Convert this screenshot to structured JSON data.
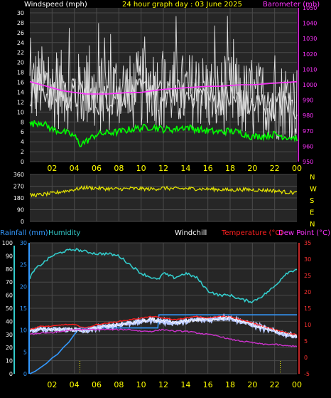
{
  "colors": {
    "background": "#000000",
    "plot_bg": "#262626",
    "grid": "#4a4a4a",
    "axis_text": "#ffffff",
    "hour_text": "#ffff00",
    "header_title": "#ffff00",
    "pressure": "#ff33ff",
    "wind": "#ffffff",
    "gust_band": "#bdbdbd",
    "windchill_band": "#ffff66",
    "direction": "#e6e600",
    "green_series": "#00ff00",
    "rain": "#3399ff",
    "humidity": "#33cccc",
    "temperature": "#ff2020",
    "dewpoint": "#cc33cc",
    "windchill": "#ffffff",
    "temp_axis": "#ff3333",
    "rain_axis": "#3399ff",
    "hum_axis": "#33cccc"
  },
  "header": {
    "windspeed_label": "Windspeed (mph)",
    "title": "24 hour graph day : 03 June 2025",
    "barometer_label": "Barometer (mb)"
  },
  "lower_header": {
    "rainfall_label": "Rainfall (mm)",
    "humidity_label": "Humidity",
    "windchill_label": "Windchill",
    "temperature_label": "Temperature (°C)",
    "dewpoint_label": "Dew Point (°C)"
  },
  "hour_labels": [
    "02",
    "04",
    "06",
    "08",
    "10",
    "12",
    "14",
    "16",
    "18",
    "20",
    "22",
    "00"
  ],
  "direction_labels": [
    "N",
    "W",
    "S",
    "E",
    "N"
  ],
  "chart_data": [
    {
      "type": "line",
      "panel": "wind_pressure",
      "x_unit": "hour",
      "xlim": [
        0,
        24
      ],
      "y_left": {
        "ticks": [
          0,
          2,
          4,
          6,
          8,
          10,
          12,
          14,
          16,
          18,
          20,
          22,
          24,
          26,
          28,
          30
        ],
        "ylim": [
          0,
          31
        ]
      },
      "y_right": {
        "ticks": [
          950,
          960,
          970,
          980,
          990,
          1000,
          1010,
          1020,
          1030,
          1040,
          1050
        ],
        "ylim": [
          950,
          1050
        ]
      },
      "grid": true,
      "series": [
        {
          "role": "pressure",
          "axis": "right",
          "x": [
            0,
            1,
            2,
            3,
            4,
            5,
            6,
            7,
            8,
            9,
            10,
            11,
            12,
            13,
            14,
            15,
            16,
            17,
            18,
            19,
            20,
            21,
            22,
            23,
            24
          ],
          "y": [
            1002,
            1000,
            998,
            996,
            995,
            994,
            994,
            994,
            994.5,
            995,
            995,
            996,
            997,
            997.5,
            998,
            998.5,
            999,
            999,
            999.5,
            1000,
            1000,
            1000.5,
            1001,
            1001.5,
            1002
          ]
        },
        {
          "role": "wind_avg",
          "axis": "left",
          "x": [
            0,
            1,
            2,
            3,
            4,
            5,
            6,
            7,
            8,
            9,
            10,
            11,
            12,
            13,
            14,
            15,
            16,
            17,
            18,
            19,
            20,
            21,
            22,
            23,
            24
          ],
          "y": [
            14,
            15,
            13,
            14,
            13,
            14,
            12,
            13,
            14,
            13,
            14,
            15,
            13,
            14,
            13,
            14,
            13,
            12,
            13,
            12,
            11,
            12,
            11,
            12,
            11
          ]
        },
        {
          "role": "green_series",
          "axis": "left",
          "x": [
            0,
            1,
            2,
            3,
            4,
            4.5,
            5,
            6,
            7,
            8,
            9,
            10,
            11,
            12,
            13,
            14,
            15,
            16,
            17,
            18,
            19,
            20,
            21,
            22,
            23,
            24
          ],
          "y": [
            7.5,
            8,
            6.5,
            6,
            5.2,
            3.5,
            4,
            5.5,
            5.8,
            6,
            6.5,
            6.8,
            7,
            6.5,
            6.5,
            7,
            6.5,
            6.2,
            6,
            6.2,
            5.8,
            5,
            5.2,
            5.5,
            5,
            4.8
          ]
        }
      ]
    },
    {
      "type": "line",
      "panel": "wind_direction",
      "x_unit": "hour",
      "xlim": [
        0,
        24
      ],
      "ylim": [
        0,
        360
      ],
      "y_ticks": [
        0,
        90,
        180,
        270,
        360
      ],
      "grid": true,
      "series": [
        {
          "role": "direction",
          "x": [
            0,
            1,
            2,
            3,
            4,
            5,
            6,
            7,
            8,
            9,
            10,
            11,
            12,
            13,
            14,
            15,
            16,
            17,
            18,
            19,
            20,
            21,
            22,
            23,
            24
          ],
          "y": [
            200,
            205,
            215,
            230,
            245,
            260,
            255,
            250,
            248,
            252,
            250,
            248,
            255,
            250,
            252,
            250,
            248,
            245,
            240,
            245,
            242,
            240,
            235,
            225,
            220
          ]
        }
      ]
    },
    {
      "type": "line",
      "panel": "temp_humidity_rain",
      "x_unit": "hour",
      "xlim": [
        0,
        24
      ],
      "y_rain": {
        "ticks": [
          0,
          10,
          20,
          30,
          40,
          50,
          60,
          70,
          80,
          90,
          100
        ],
        "ylim": [
          0,
          100
        ]
      },
      "y_humidity": {
        "ticks": [
          0,
          5,
          10,
          15,
          20,
          25,
          30
        ],
        "ylim": [
          0,
          30
        ]
      },
      "y_temp": {
        "ticks": [
          -5,
          0,
          5,
          10,
          15,
          20,
          25,
          30,
          35
        ],
        "ylim": [
          -5,
          35
        ]
      },
      "grid": true,
      "series": [
        {
          "role": "humidity",
          "axis": "humidity",
          "x": [
            0,
            0.5,
            1,
            2,
            3,
            4,
            5,
            6,
            7,
            8,
            9,
            10,
            11,
            11.5,
            12,
            13,
            14,
            15,
            16,
            17,
            18,
            19,
            20,
            21,
            22,
            23,
            24
          ],
          "y": [
            22,
            24,
            25,
            27,
            28,
            28.5,
            28,
            27.5,
            27.5,
            27,
            25,
            23,
            22,
            21.5,
            23,
            22,
            23,
            22,
            19,
            18,
            18,
            17,
            16.5,
            18,
            20,
            23,
            24
          ]
        },
        {
          "role": "rain_cumulative",
          "axis": "rain",
          "x": [
            0,
            0.5,
            1,
            1.5,
            2,
            2.5,
            3,
            3.5,
            4,
            4.5,
            5,
            11.5,
            11.6,
            12,
            14,
            16,
            18,
            20,
            22,
            24
          ],
          "y": [
            0,
            2,
            5,
            8,
            12,
            15,
            20,
            24,
            30,
            35,
            35,
            35,
            45,
            45,
            45,
            45,
            45,
            45,
            45,
            45
          ]
        },
        {
          "role": "temperature",
          "axis": "temp",
          "x": [
            0,
            1,
            2,
            3,
            4,
            5,
            6,
            7,
            8,
            9,
            10,
            11,
            12,
            13,
            14,
            15,
            16,
            17,
            18,
            19,
            20,
            21,
            22,
            23,
            24
          ],
          "y": [
            8.5,
            9.5,
            9.5,
            10,
            10,
            9,
            10,
            10.5,
            11,
            11.5,
            12,
            12.5,
            12,
            11.5,
            12,
            12.5,
            12,
            12.5,
            12.5,
            11.5,
            10.5,
            9.5,
            8.5,
            7.5,
            7
          ]
        },
        {
          "role": "windchill",
          "axis": "temp",
          "x": [
            0,
            1,
            2,
            3,
            4,
            5,
            6,
            7,
            8,
            9,
            10,
            11,
            12,
            13,
            14,
            15,
            16,
            17,
            18,
            19,
            20,
            21,
            22,
            23,
            24
          ],
          "y": [
            8,
            8.5,
            8.5,
            8.5,
            8.5,
            8,
            9,
            9.5,
            10,
            10.5,
            11,
            11.5,
            11,
            10.5,
            11,
            11.5,
            11.5,
            12,
            12,
            11,
            10,
            9,
            8,
            7,
            6.5
          ]
        },
        {
          "role": "dewpoint",
          "axis": "temp",
          "x": [
            0,
            1,
            2,
            3,
            4,
            5,
            6,
            7,
            8,
            9,
            10,
            11,
            12,
            13,
            14,
            15,
            16,
            17,
            18,
            19,
            20,
            21,
            22,
            23,
            24
          ],
          "y": [
            7,
            7.5,
            7.5,
            8,
            8.5,
            8.5,
            8.5,
            8.5,
            8.5,
            8.5,
            8,
            8,
            8.5,
            8,
            8,
            7.5,
            7,
            6.5,
            5.5,
            5,
            4.5,
            4,
            4,
            3.5,
            3.5
          ]
        }
      ]
    }
  ]
}
